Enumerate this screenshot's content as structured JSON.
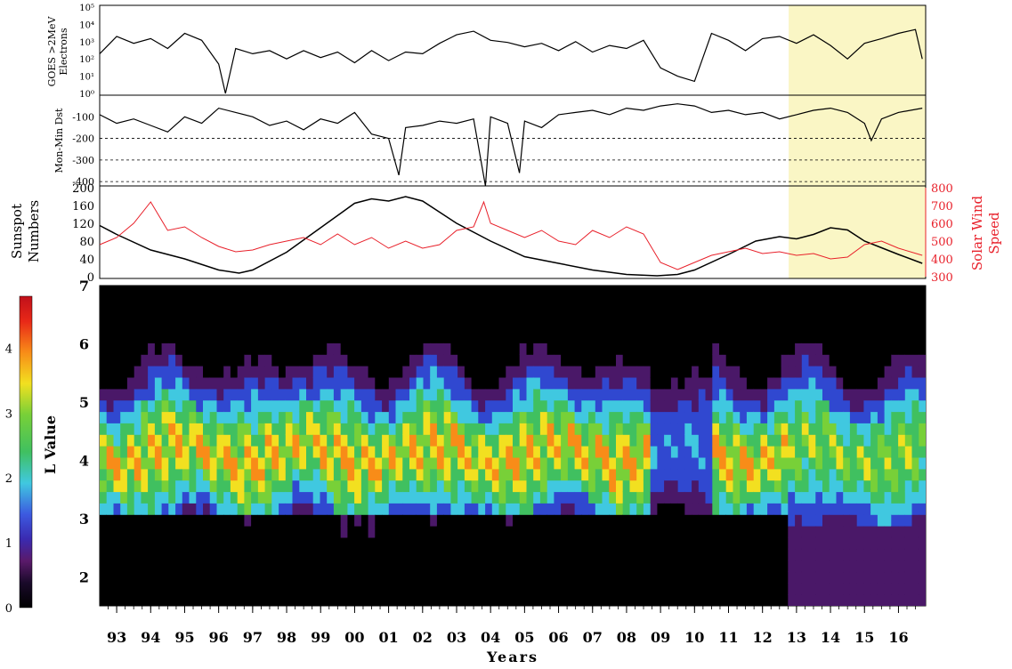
{
  "chart_data": [
    {
      "type": "line",
      "panel": "goes-electrons",
      "ylabel_line1": "GOES >2MeV",
      "ylabel_line2": "Electrons",
      "y_scale": "log",
      "ylim": [
        1,
        100000
      ],
      "yticks": [
        "10⁰",
        "10¹",
        "10²",
        "10³",
        "10⁴",
        "10⁵"
      ],
      "x": [
        1992.5,
        1993,
        1993.5,
        1994,
        1994.5,
        1995,
        1995.5,
        1996,
        1996.2,
        1996.5,
        1997,
        1997.5,
        1998,
        1998.5,
        1999,
        1999.5,
        2000,
        2000.5,
        2001,
        2001.5,
        2002,
        2002.5,
        2003,
        2003.5,
        2004,
        2004.5,
        2005,
        2005.5,
        2006,
        2006.5,
        2007,
        2007.5,
        2008,
        2008.5,
        2009,
        2009.5,
        2010,
        2010.5,
        2011,
        2011.5,
        2012,
        2012.5,
        2013,
        2013.5,
        2014,
        2014.5,
        2015,
        2015.5,
        2016,
        2016.5,
        2016.7
      ],
      "y": [
        200,
        2000,
        800,
        1500,
        400,
        3000,
        1200,
        50,
        1,
        400,
        200,
        300,
        100,
        300,
        120,
        250,
        60,
        300,
        80,
        250,
        200,
        800,
        2500,
        4000,
        1200,
        900,
        500,
        800,
        300,
        1000,
        250,
        600,
        400,
        1200,
        30,
        10,
        5,
        3000,
        1200,
        300,
        1500,
        2000,
        800,
        2500,
        600,
        100,
        800,
        1500,
        3000,
        5000,
        100
      ]
    },
    {
      "type": "line",
      "panel": "dst",
      "ylabel": "Mon-Min Dst",
      "ylim": [
        -420,
        0
      ],
      "yticks": [
        -100,
        -200,
        -300,
        -400
      ],
      "x": [
        1992.5,
        1993,
        1993.5,
        1994,
        1994.5,
        1995,
        1995.5,
        1996,
        1996.5,
        1997,
        1997.5,
        1998,
        1998.5,
        1999,
        1999.5,
        2000,
        2000.5,
        2001,
        2001.3,
        2001.5,
        2002,
        2002.5,
        2003,
        2003.5,
        2003.85,
        2004,
        2004.5,
        2004.85,
        2005,
        2005.5,
        2006,
        2006.5,
        2007,
        2007.5,
        2008,
        2008.5,
        2009,
        2009.5,
        2010,
        2010.5,
        2011,
        2011.5,
        2012,
        2012.5,
        2013,
        2013.5,
        2014,
        2014.5,
        2015,
        2015.2,
        2015.5,
        2016,
        2016.7
      ],
      "y": [
        -90,
        -130,
        -110,
        -140,
        -170,
        -100,
        -130,
        -60,
        -80,
        -100,
        -140,
        -120,
        -160,
        -110,
        -130,
        -80,
        -180,
        -200,
        -370,
        -150,
        -140,
        -120,
        -130,
        -110,
        -420,
        -100,
        -130,
        -360,
        -120,
        -150,
        -90,
        -80,
        -70,
        -90,
        -60,
        -70,
        -50,
        -40,
        -50,
        -80,
        -70,
        -90,
        -80,
        -110,
        -90,
        -70,
        -60,
        -80,
        -130,
        -210,
        -110,
        -80,
        -60
      ]
    },
    {
      "type": "line",
      "panel": "sunspot-solarwind",
      "ylabel_left_line1": "Sunspot",
      "ylabel_left_line2": "Numbers",
      "ylabel_right_line1": "Solar Wind",
      "ylabel_right_line2": "Speed",
      "ylim_left": [
        0,
        200
      ],
      "ylim_right": [
        300,
        800
      ],
      "yticks_left": [
        0,
        40,
        80,
        120,
        160,
        200
      ],
      "yticks_right": [
        300,
        400,
        500,
        600,
        700,
        800
      ],
      "series": [
        {
          "axis": "left",
          "color": "#000000",
          "x": [
            1992.5,
            1993,
            1994,
            1995,
            1996,
            1996.6,
            1997,
            1998,
            1999,
            2000,
            2000.5,
            2001,
            2001.5,
            2002,
            2003,
            2004,
            2005,
            2006,
            2007,
            2008,
            2008.9,
            2009.5,
            2010,
            2011,
            2011.8,
            2012.5,
            2013,
            2013.5,
            2014,
            2014.5,
            2015,
            2015.5,
            2016,
            2016.7
          ],
          "y": [
            115,
            95,
            60,
            40,
            15,
            8,
            15,
            55,
            110,
            165,
            175,
            170,
            180,
            170,
            120,
            80,
            45,
            30,
            15,
            5,
            2,
            5,
            15,
            50,
            80,
            90,
            85,
            95,
            110,
            105,
            80,
            65,
            50,
            30
          ]
        },
        {
          "axis": "right",
          "color": "#e8202a",
          "x": [
            1992.5,
            1993,
            1993.5,
            1994,
            1994.5,
            1995,
            1995.5,
            1996,
            1996.5,
            1997,
            1997.5,
            1998,
            1998.5,
            1999,
            1999.5,
            2000,
            2000.5,
            2001,
            2001.5,
            2002,
            2002.5,
            2003,
            2003.5,
            2003.8,
            2004,
            2004.5,
            2005,
            2005.5,
            2006,
            2006.5,
            2007,
            2007.5,
            2008,
            2008.5,
            2009,
            2009.5,
            2010,
            2010.5,
            2011,
            2011.5,
            2012,
            2012.5,
            2013,
            2013.5,
            2014,
            2014.5,
            2015,
            2015.5,
            2016,
            2016.7
          ],
          "y": [
            480,
            520,
            600,
            720,
            560,
            580,
            520,
            470,
            440,
            450,
            480,
            500,
            520,
            480,
            540,
            480,
            520,
            460,
            500,
            460,
            480,
            560,
            580,
            720,
            600,
            560,
            520,
            560,
            500,
            480,
            560,
            520,
            580,
            540,
            380,
            340,
            380,
            420,
            440,
            460,
            430,
            440,
            420,
            430,
            400,
            410,
            480,
            500,
            460,
            420
          ]
        }
      ]
    },
    {
      "type": "heatmap",
      "panel": "electron-flux-l",
      "ylabel": "L Value",
      "xlabel": "Years",
      "ylim": [
        1.5,
        7
      ],
      "yticks": [
        2,
        3,
        4,
        5,
        6,
        7
      ],
      "xlim": [
        1992.5,
        2016.8
      ],
      "xticks": [
        "93",
        "94",
        "95",
        "96",
        "97",
        "98",
        "99",
        "00",
        "01",
        "02",
        "03",
        "04",
        "05",
        "06",
        "07",
        "08",
        "09",
        "10",
        "11",
        "12",
        "13",
        "14",
        "15",
        "16"
      ],
      "colorbar_range": [
        0,
        4.8
      ],
      "colorbar_ticks": [
        0,
        1,
        2,
        3,
        4
      ],
      "highlight_start": 2012.75
    }
  ],
  "colors": {
    "highlight": "#faf6c5",
    "solar_wind": "#e8202a"
  }
}
